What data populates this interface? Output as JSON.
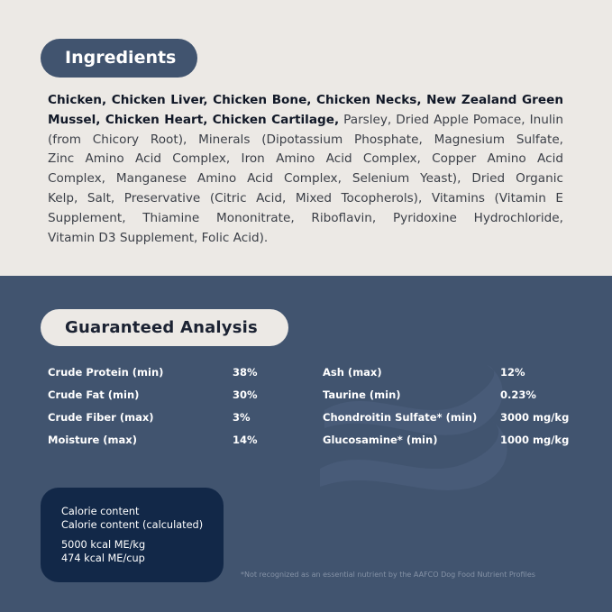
{
  "ingredients": {
    "title": "Ingredients",
    "lines": [
      {
        "bold": "Chicken, Chicken Liver, Chicken Bone, Chicken Necks, New Zealand Green",
        "regular": ""
      },
      {
        "bold": "Mussel, Chicken Heart, Chicken Cartilage,",
        "regular": " Parsley, Dried Apple Pomace, Inulin"
      },
      {
        "bold": "",
        "regular": "(from Chicory Root), Minerals (Dipotassium Phosphate, Magnesium Sulfate,"
      },
      {
        "bold": "",
        "regular": "Zinc Amino Acid Complex, Iron Amino Acid Complex, Copper Amino Acid"
      },
      {
        "bold": "",
        "regular": "Complex, Manganese Amino Acid Complex, Selenium Yeast), Dried Organic"
      },
      {
        "bold": "",
        "regular": "Kelp, Salt, Preservative (Citric Acid, Mixed Tocopherols), Vitamins (Vitamin E"
      },
      {
        "bold": "",
        "regular": "Supplement, Thiamine Mononitrate, Riboflavin, Pyridoxine Hydrochloride,"
      },
      {
        "bold": "",
        "regular": "Vitamin D3 Supplement, Folic Acid)."
      }
    ]
  },
  "analysis": {
    "title": "Guaranteed Analysis",
    "left": [
      {
        "label": "Crude Protein (min)",
        "value": "38%"
      },
      {
        "label": "Crude Fat (min)",
        "value": "30%"
      },
      {
        "label": "Crude Fiber (max)",
        "value": "3%"
      },
      {
        "label": "Moisture (max)",
        "value": "14%"
      }
    ],
    "right": [
      {
        "label": "Ash (max)",
        "value": "12%"
      },
      {
        "label": "Taurine (min)",
        "value": "0.23%"
      },
      {
        "label": "Chondroitin Sulfate* (min)",
        "value": "3000 mg/kg"
      },
      {
        "label": "Glucosamine* (min)",
        "value": "1000 mg/kg"
      }
    ]
  },
  "calorie": {
    "line1": "Calorie content",
    "line2": "Calorie content (calculated)",
    "value1": "5000 kcal ME/kg",
    "value2": "474 kcal ME/cup"
  },
  "footnote": "*Not recognized as an essential nutrient by the AAFCO Dog Food Nutrient Profiles",
  "colors": {
    "cream": "#ece9e5",
    "navy": "#41546f",
    "dark_navy": "#122848"
  },
  "icons": {
    "watermark": "wave-icon"
  }
}
